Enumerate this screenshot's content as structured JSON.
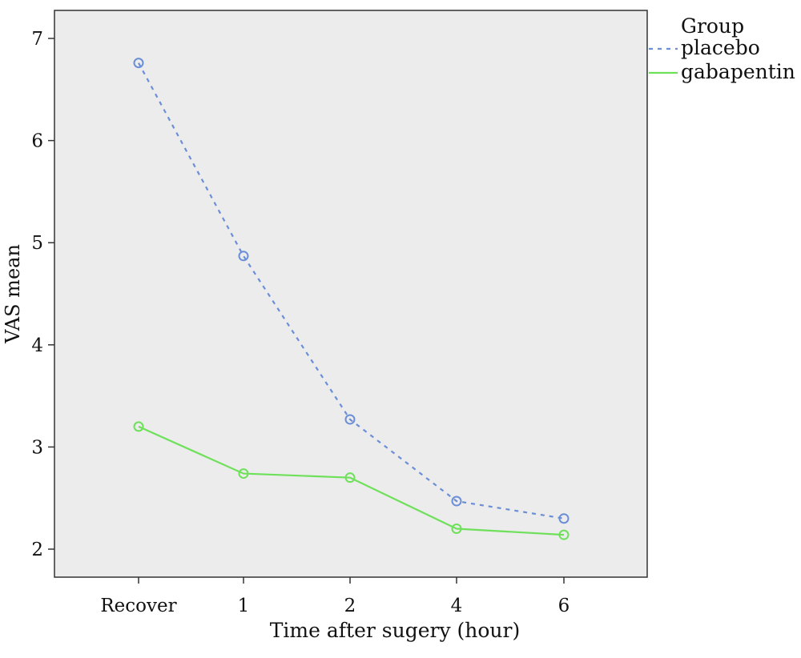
{
  "chart_data": {
    "type": "line",
    "title": "",
    "xlabel": "Time after sugery (hour)",
    "ylabel": "VAS mean",
    "categories": [
      "Recover",
      "1",
      "2",
      "4",
      "6"
    ],
    "ylim": [
      1.7,
      7.3
    ],
    "yticks": [
      2,
      3,
      4,
      5,
      6,
      7
    ],
    "grid": false,
    "legend": {
      "title": "Group",
      "position": "top-right-outside"
    },
    "series": [
      {
        "name": "placebo",
        "values": [
          6.76,
          4.87,
          3.27,
          2.47,
          2.3
        ],
        "color": "#6b8fd6",
        "line_style": "dotted",
        "marker": "open-circle"
      },
      {
        "name": "gabapentin",
        "values": [
          3.2,
          2.74,
          2.7,
          2.2,
          2.14
        ],
        "color": "#6ee05a",
        "line_style": "solid",
        "marker": "open-circle"
      }
    ],
    "plot_background": "#ececec"
  }
}
